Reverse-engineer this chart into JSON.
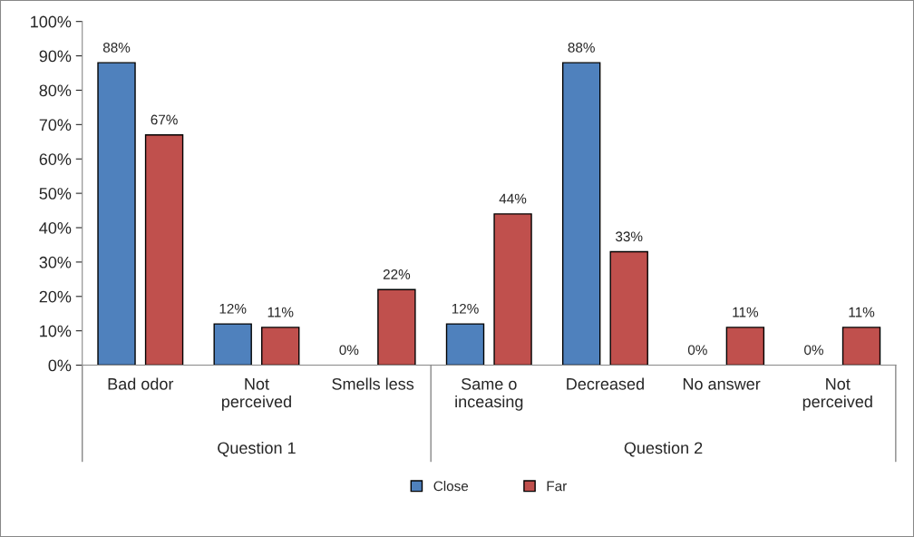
{
  "chart_data": {
    "type": "bar",
    "categories": [
      "Bad odor",
      "Not\nperceived",
      "Smells less",
      "Same o\ninceasing",
      "Decreased",
      "No answer",
      "Not\nperceived"
    ],
    "series": [
      {
        "name": "Close",
        "color": "#4f81bd",
        "values": [
          88,
          12,
          0,
          12,
          88,
          0,
          0
        ]
      },
      {
        "name": "Far",
        "color": "#c0504d",
        "values": [
          67,
          11,
          22,
          44,
          33,
          11,
          11
        ]
      }
    ],
    "ylim": [
      0,
      100
    ],
    "yticks": [
      {
        "value": 0,
        "label": "0%"
      },
      {
        "value": 10,
        "label": "10%"
      },
      {
        "value": 20,
        "label": "20%"
      },
      {
        "value": 30,
        "label": "30%"
      },
      {
        "value": 40,
        "label": "40%"
      },
      {
        "value": 50,
        "label": "50%"
      },
      {
        "value": 60,
        "label": "60%"
      },
      {
        "value": 70,
        "label": "70%"
      },
      {
        "value": 80,
        "label": "80%"
      },
      {
        "value": 90,
        "label": "90%"
      },
      {
        "value": 100,
        "label": "100%"
      }
    ],
    "value_labels": [
      [
        "88%",
        "12%",
        "0%",
        "12%",
        "88%",
        "0%",
        "0%"
      ],
      [
        "67%",
        "11%",
        "22%",
        "44%",
        "33%",
        "11%",
        "11%"
      ]
    ],
    "annotations": [
      "Question 1",
      "Question 2"
    ],
    "grid": false,
    "legend": "bottom"
  }
}
